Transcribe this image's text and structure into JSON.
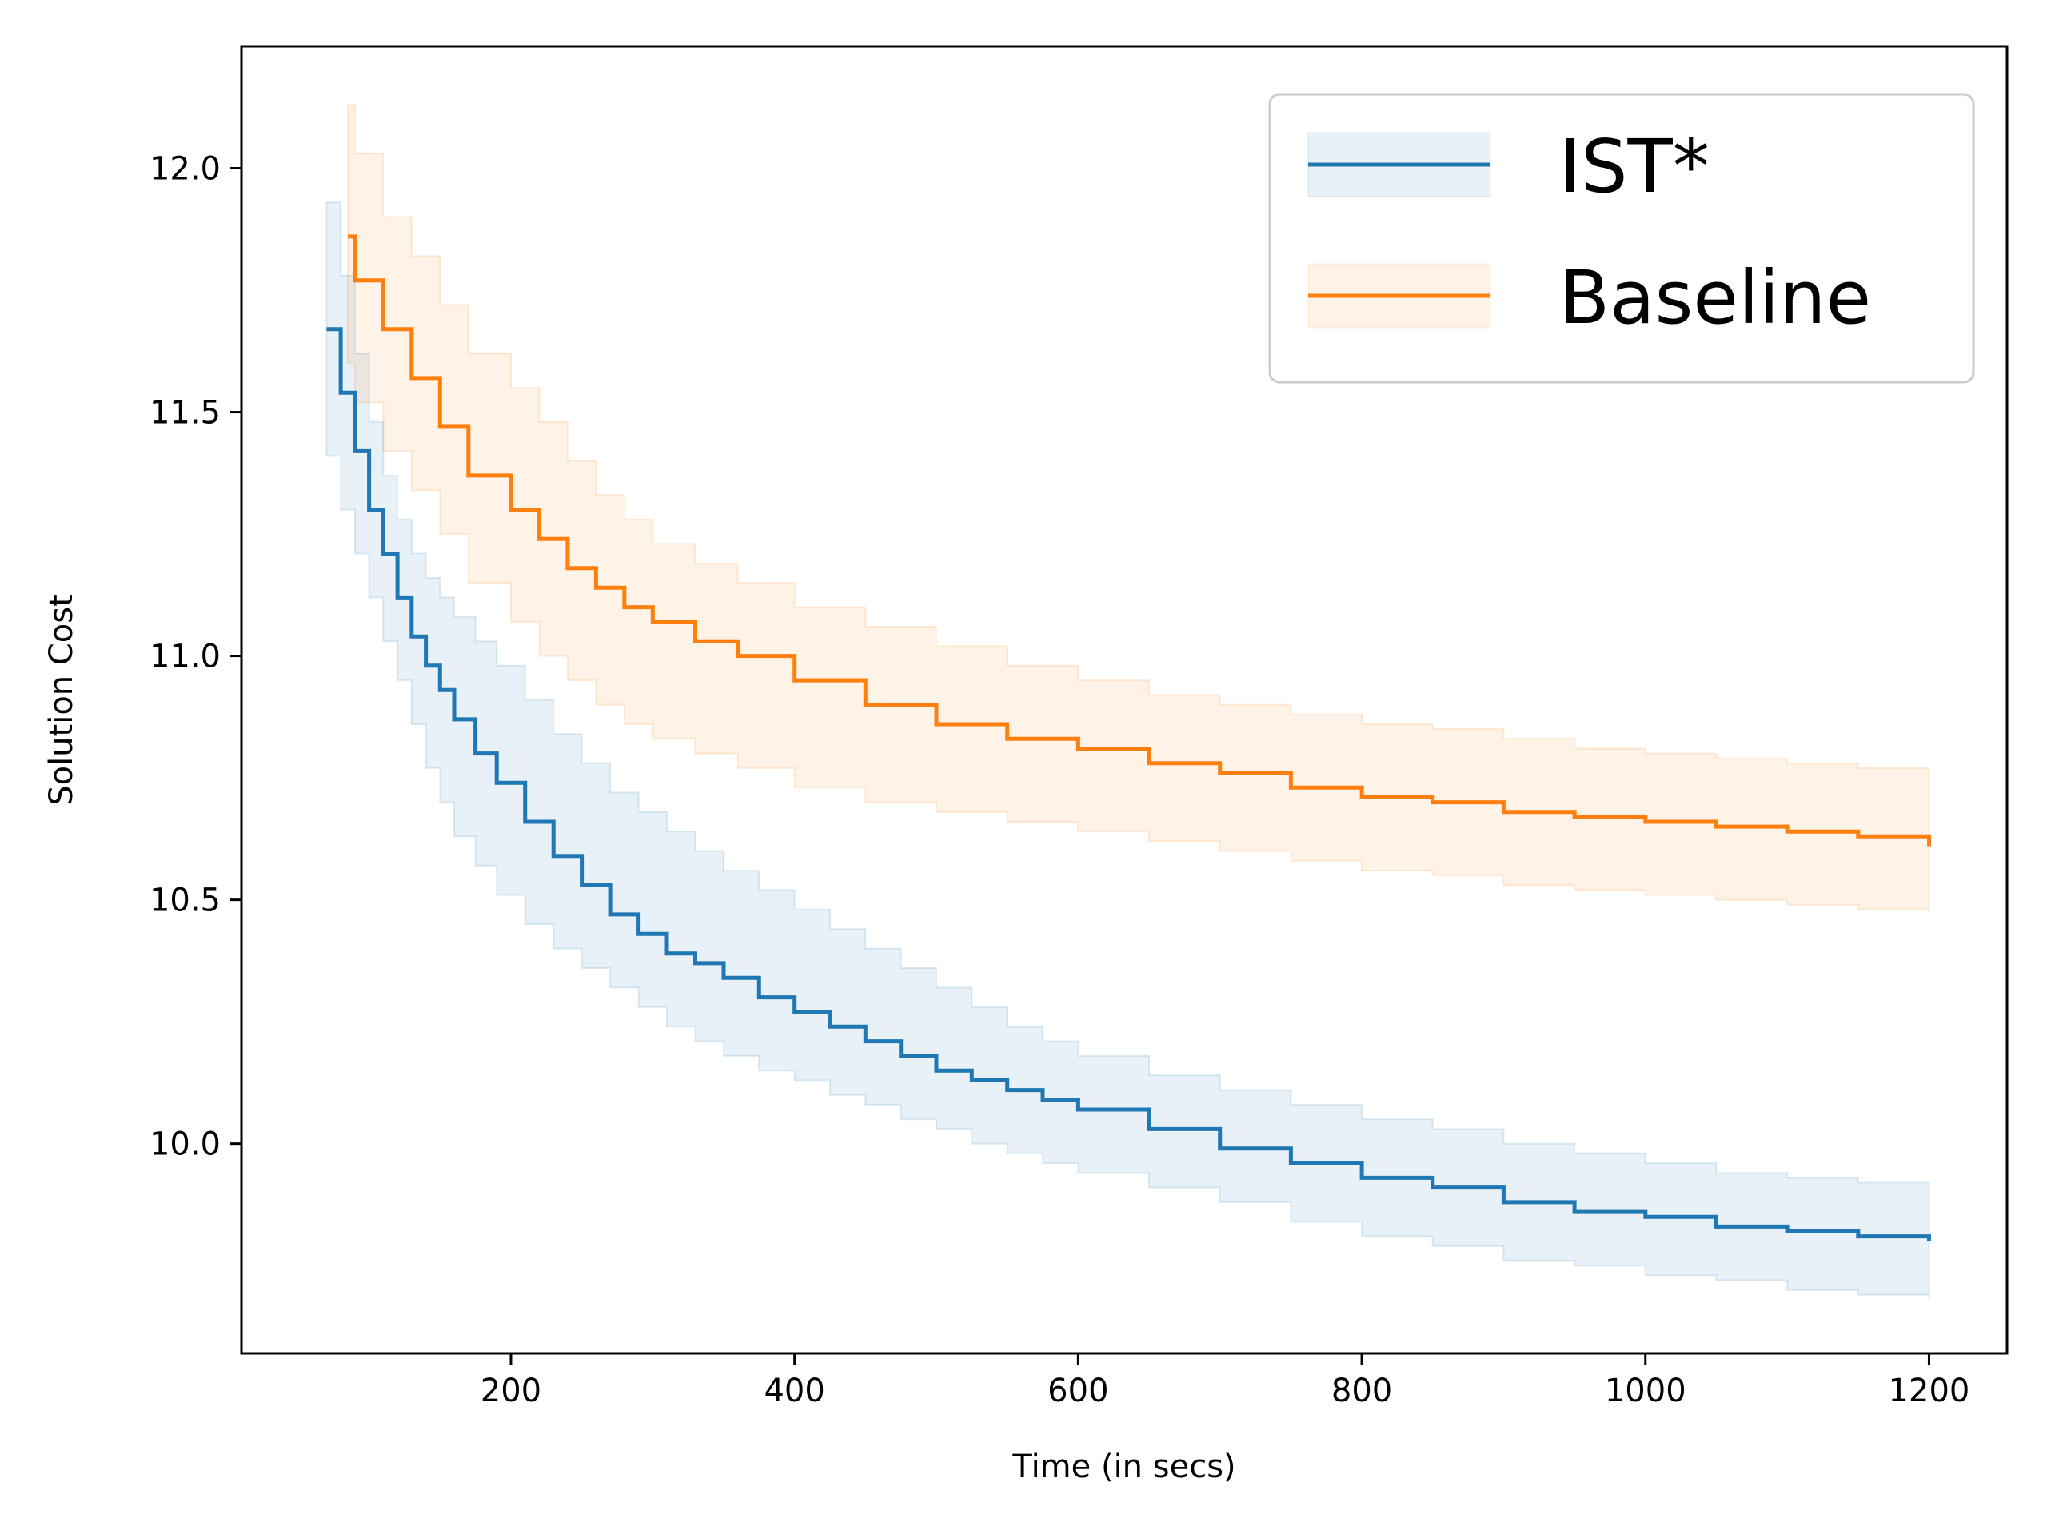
{
  "chart_data": {
    "type": "line",
    "title": "",
    "xlabel": "Time (in secs)",
    "ylabel": "Solution Cost",
    "xlim": [
      10,
      1255
    ],
    "ylim": [
      9.57,
      12.25
    ],
    "x_ticks": [
      200,
      400,
      600,
      800,
      1000,
      1200
    ],
    "x_tick_labels": [
      "200",
      "400",
      "600",
      "800",
      "1000",
      "1200"
    ],
    "y_ticks": [
      10.0,
      10.5,
      11.0,
      11.5,
      12.0
    ],
    "y_tick_labels": [
      "10.0",
      "10.5",
      "11.0",
      "11.5",
      "12.0"
    ],
    "grid": false,
    "legend_position": "top-right",
    "series": [
      {
        "name": "IST*",
        "color": "#1f77b4",
        "band_alpha": 0.1,
        "x": [
          70,
          80,
          90,
          100,
          110,
          120,
          130,
          140,
          150,
          160,
          175,
          190,
          210,
          230,
          250,
          270,
          290,
          310,
          330,
          350,
          375,
          400,
          425,
          450,
          475,
          500,
          525,
          550,
          575,
          600,
          650,
          700,
          750,
          800,
          850,
          900,
          950,
          1000,
          1050,
          1100,
          1150,
          1200
        ],
        "y": [
          11.67,
          11.54,
          11.42,
          11.3,
          11.21,
          11.12,
          11.04,
          10.98,
          10.93,
          10.87,
          10.8,
          10.74,
          10.66,
          10.59,
          10.53,
          10.47,
          10.43,
          10.39,
          10.37,
          10.34,
          10.3,
          10.27,
          10.24,
          10.21,
          10.18,
          10.15,
          10.13,
          10.11,
          10.09,
          10.07,
          10.03,
          9.99,
          9.96,
          9.93,
          9.91,
          9.88,
          9.86,
          9.85,
          9.83,
          9.82,
          9.81,
          9.8
        ],
        "upper": [
          11.93,
          11.78,
          11.62,
          11.48,
          11.37,
          11.28,
          11.21,
          11.16,
          11.12,
          11.08,
          11.03,
          10.98,
          10.91,
          10.84,
          10.78,
          10.72,
          10.68,
          10.64,
          10.6,
          10.56,
          10.52,
          10.48,
          10.44,
          10.4,
          10.36,
          10.32,
          10.28,
          10.24,
          10.21,
          10.18,
          10.14,
          10.11,
          10.08,
          10.05,
          10.03,
          10.0,
          9.98,
          9.96,
          9.94,
          9.93,
          9.92,
          9.91
        ],
        "lower": [
          11.41,
          11.3,
          11.21,
          11.12,
          11.03,
          10.95,
          10.86,
          10.77,
          10.7,
          10.63,
          10.57,
          10.51,
          10.45,
          10.4,
          10.36,
          10.32,
          10.28,
          10.24,
          10.21,
          10.18,
          10.15,
          10.13,
          10.1,
          10.08,
          10.05,
          10.03,
          10.0,
          9.98,
          9.96,
          9.94,
          9.91,
          9.88,
          9.84,
          9.81,
          9.79,
          9.76,
          9.75,
          9.73,
          9.72,
          9.7,
          9.69,
          9.68
        ]
      },
      {
        "name": "Baseline",
        "color": "#ff7f0e",
        "band_alpha": 0.1,
        "x": [
          85,
          90,
          110,
          130,
          150,
          170,
          200,
          220,
          240,
          260,
          280,
          300,
          330,
          360,
          400,
          450,
          500,
          550,
          600,
          650,
          700,
          750,
          800,
          850,
          900,
          950,
          1000,
          1050,
          1100,
          1150,
          1200
        ],
        "y": [
          11.86,
          11.77,
          11.67,
          11.57,
          11.47,
          11.37,
          11.3,
          11.24,
          11.18,
          11.14,
          11.1,
          11.07,
          11.03,
          11.0,
          10.95,
          10.9,
          10.86,
          10.83,
          10.81,
          10.78,
          10.76,
          10.73,
          10.71,
          10.7,
          10.68,
          10.67,
          10.66,
          10.65,
          10.64,
          10.63,
          10.61
        ],
        "upper": [
          12.13,
          12.03,
          11.9,
          11.82,
          11.72,
          11.62,
          11.55,
          11.48,
          11.4,
          11.33,
          11.28,
          11.23,
          11.19,
          11.15,
          11.1,
          11.06,
          11.02,
          10.98,
          10.95,
          10.92,
          10.9,
          10.88,
          10.86,
          10.85,
          10.83,
          10.81,
          10.8,
          10.79,
          10.78,
          10.77,
          10.75
        ],
        "lower": [
          11.6,
          11.52,
          11.42,
          11.34,
          11.25,
          11.15,
          11.07,
          11.0,
          10.95,
          10.9,
          10.86,
          10.83,
          10.8,
          10.77,
          10.73,
          10.7,
          10.68,
          10.66,
          10.64,
          10.62,
          10.6,
          10.58,
          10.56,
          10.55,
          10.53,
          10.52,
          10.51,
          10.5,
          10.49,
          10.48,
          10.47
        ]
      }
    ]
  }
}
